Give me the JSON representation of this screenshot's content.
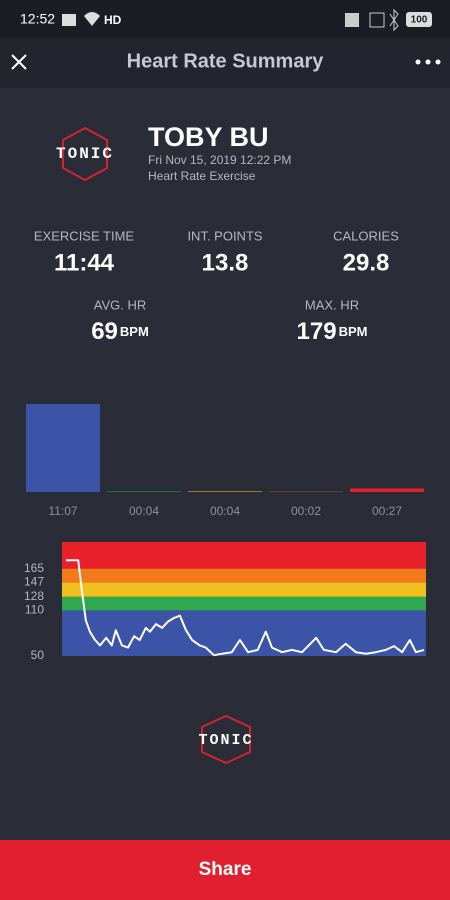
{
  "status_bar": {
    "time": "12:52",
    "network": "HD",
    "battery": "100"
  },
  "header": {
    "title": "Heart Rate Summary"
  },
  "profile": {
    "logo": "TONIC",
    "name": "TOBY BU",
    "date": "Fri Nov 15, 2019 12:22 PM",
    "activity": "Heart Rate Exercise"
  },
  "stats": [
    {
      "label": "EXERCISE TIME",
      "value": "11:44"
    },
    {
      "label": "INT. POINTS",
      "value": "13.8"
    },
    {
      "label": "CALORIES",
      "value": "29.8"
    }
  ],
  "hr_stats": [
    {
      "label": "AVG. HR",
      "value": "69",
      "unit": "BPM"
    },
    {
      "label": "MAX. HR",
      "value": "179",
      "unit": "BPM"
    }
  ],
  "zone_chart": {
    "type": "bar",
    "values": [
      667,
      4,
      4,
      2,
      27
    ],
    "value_labels": [
      "11:07",
      "00:04",
      "00:04",
      "00:02",
      "00:27"
    ],
    "colors": [
      "#3b54a8",
      "#2fa84f",
      "#f2c01e",
      "#f27a1a",
      "#e8202a"
    ],
    "ylim": [
      0,
      667
    ]
  },
  "hr_chart": {
    "type": "line",
    "color": "#ffffff",
    "x": [
      0,
      24,
      31,
      39,
      47,
      57,
      67,
      79,
      90,
      98,
      110,
      122,
      134,
      145,
      157,
      165,
      177,
      189,
      200,
      212,
      224,
      236,
      248,
      263,
      275,
      291,
      307,
      326,
      342,
      358,
      377,
      393,
      405,
      425,
      444,
      464,
      492,
      507,
      531,
      550,
      570,
      590,
      609,
      629,
      645,
      661,
      676,
      688,
      704
    ],
    "values": [
      176,
      176,
      137,
      97,
      82,
      71,
      64,
      74,
      64,
      84,
      64,
      61,
      76,
      71,
      87,
      82,
      92,
      87,
      95,
      100,
      103,
      84,
      71,
      64,
      61,
      51,
      53,
      55,
      71,
      55,
      58,
      82,
      61,
      55,
      58,
      55,
      74,
      58,
      55,
      66,
      55,
      53,
      55,
      58,
      63,
      55,
      71,
      55,
      58
    ],
    "xlim": [
      0,
      704
    ],
    "ylim": [
      50,
      200
    ],
    "yticks": [
      50,
      110,
      128,
      147,
      165
    ],
    "zone_colors": [
      "#3b54a8",
      "#2fa84f",
      "#f2c01e",
      "#f27a1a",
      "#e8202a"
    ]
  },
  "share": {
    "label": "Share"
  }
}
